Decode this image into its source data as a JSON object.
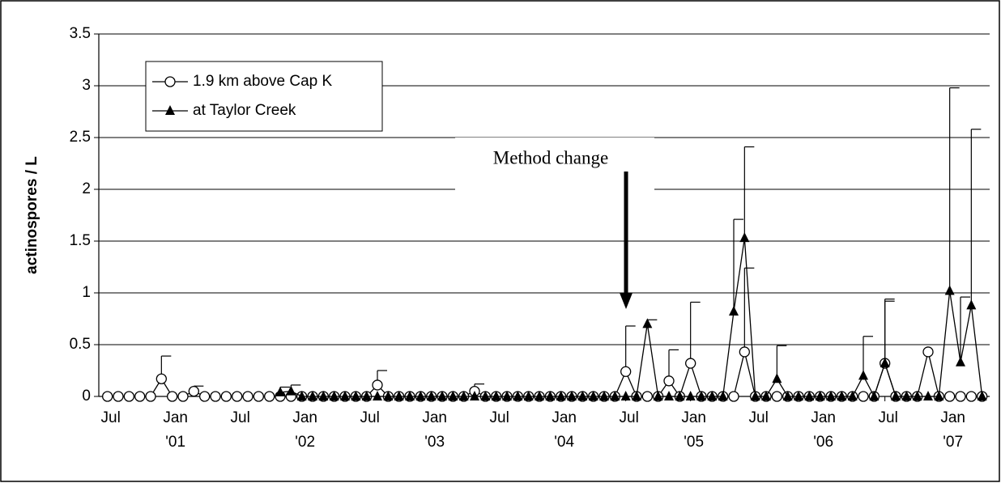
{
  "chart_data": {
    "type": "line",
    "ylabel": "actinospores / L",
    "annotation": "Method change",
    "x": [
      0,
      1,
      2,
      3,
      4,
      5,
      6,
      7,
      8,
      9,
      10,
      11,
      12,
      13,
      14,
      15,
      16,
      17,
      18,
      19,
      20,
      21,
      22,
      23,
      24,
      25,
      26,
      27,
      28,
      29,
      30,
      31,
      32,
      33,
      34,
      35,
      36,
      37,
      38,
      39,
      40,
      41,
      42,
      43,
      44,
      45,
      46,
      47,
      48,
      49,
      50,
      51,
      52,
      53,
      54,
      55,
      56,
      57,
      58,
      59,
      60,
      61,
      62,
      63,
      64,
      65,
      66,
      67,
      68,
      69,
      70,
      71,
      72,
      73,
      74,
      75,
      76,
      77,
      78,
      79,
      80,
      81
    ],
    "series": [
      {
        "name": "1.9 km above Cap K",
        "color": "#000000",
        "marker": "circle",
        "values": [
          0,
          0,
          0,
          0,
          0,
          0.17,
          0,
          0,
          0.05,
          0,
          0,
          0,
          0,
          0,
          0,
          0,
          0,
          0,
          0,
          0,
          0,
          0,
          0,
          0,
          0,
          0.11,
          0,
          0,
          0,
          0,
          0,
          0,
          0,
          0,
          0.05,
          0,
          0,
          0,
          0,
          0,
          0,
          0,
          0,
          0,
          0,
          0,
          0,
          0,
          0.24,
          0,
          0,
          0,
          0.15,
          0,
          0.32,
          0,
          0,
          0,
          0,
          0.43,
          0,
          0,
          0,
          0,
          0,
          0,
          0,
          0,
          0,
          0,
          0,
          0,
          0.32,
          0,
          0,
          0,
          0.43,
          0,
          0,
          0,
          0,
          0
        ],
        "errors": [
          null,
          null,
          null,
          null,
          null,
          0.22,
          null,
          null,
          0.05,
          null,
          null,
          null,
          null,
          null,
          null,
          null,
          null,
          null,
          null,
          null,
          null,
          null,
          null,
          null,
          null,
          0.14,
          null,
          null,
          null,
          null,
          null,
          null,
          null,
          null,
          0.07,
          null,
          null,
          null,
          null,
          null,
          null,
          null,
          null,
          null,
          null,
          null,
          null,
          null,
          0.44,
          null,
          null,
          null,
          0.3,
          null,
          0.59,
          null,
          null,
          null,
          null,
          0.81,
          null,
          null,
          null,
          null,
          null,
          null,
          null,
          null,
          null,
          null,
          null,
          null,
          0.6,
          null,
          null,
          null,
          null,
          null,
          null,
          null,
          null,
          null
        ]
      },
      {
        "name": "at Taylor Creek",
        "color": "#000000",
        "marker": "triangle",
        "values": [
          null,
          null,
          null,
          null,
          null,
          null,
          null,
          null,
          null,
          null,
          null,
          null,
          null,
          null,
          null,
          null,
          0.04,
          0.05,
          0,
          0,
          0,
          0,
          0,
          0,
          0,
          0,
          0,
          0,
          0,
          0,
          0,
          0,
          0,
          0,
          0,
          0,
          0,
          0,
          0,
          0,
          0,
          0,
          0,
          0,
          0,
          0,
          0,
          0,
          0,
          0,
          0.7,
          0,
          0,
          0,
          0,
          0,
          0,
          0,
          0.82,
          1.53,
          0,
          0,
          0.17,
          0,
          0,
          0,
          0,
          0,
          0,
          0,
          0.2,
          0,
          0.32,
          0,
          0,
          0,
          0,
          0,
          1.02,
          0.33,
          0.88,
          0
        ],
        "errors": [
          null,
          null,
          null,
          null,
          null,
          null,
          null,
          null,
          null,
          null,
          null,
          null,
          null,
          null,
          null,
          null,
          0.05,
          0.06,
          null,
          null,
          null,
          null,
          null,
          null,
          null,
          null,
          null,
          null,
          null,
          null,
          null,
          null,
          null,
          null,
          null,
          null,
          null,
          null,
          null,
          null,
          null,
          null,
          null,
          null,
          null,
          null,
          null,
          null,
          null,
          null,
          0.04,
          null,
          null,
          null,
          null,
          null,
          null,
          null,
          0.89,
          0.88,
          null,
          null,
          0.32,
          null,
          null,
          null,
          null,
          null,
          null,
          null,
          0.38,
          null,
          0.62,
          null,
          null,
          null,
          null,
          null,
          1.96,
          0.63,
          1.7,
          null
        ]
      }
    ],
    "xlim": [
      -0.8,
      81.7
    ],
    "xticks": [
      {
        "value": 0,
        "label": "Jul"
      },
      {
        "value": 6,
        "label": "Jan"
      },
      {
        "value": 12,
        "label": "Jul"
      },
      {
        "value": 18,
        "label": "Jan"
      },
      {
        "value": 24,
        "label": "Jul"
      },
      {
        "value": 30,
        "label": "Jan"
      },
      {
        "value": 36,
        "label": "Jul"
      },
      {
        "value": 42,
        "label": "Jan"
      },
      {
        "value": 48,
        "label": "Jul"
      },
      {
        "value": 54,
        "label": "Jan"
      },
      {
        "value": 60,
        "label": "Jul"
      },
      {
        "value": 66,
        "label": "Jan"
      },
      {
        "value": 72,
        "label": "Jul"
      },
      {
        "value": 78,
        "label": "Jan"
      }
    ],
    "xyears": [
      {
        "value": 6,
        "label": "'01"
      },
      {
        "value": 18,
        "label": "'02"
      },
      {
        "value": 30,
        "label": "'03"
      },
      {
        "value": 42,
        "label": "'04"
      },
      {
        "value": 54,
        "label": "'05"
      },
      {
        "value": 66,
        "label": "'06"
      },
      {
        "value": 78,
        "label": "'07"
      }
    ],
    "ylim": [
      0,
      3.5
    ],
    "yticks": [
      0,
      0.5,
      1,
      1.5,
      2,
      2.5,
      3,
      3.5
    ],
    "grid": true
  }
}
